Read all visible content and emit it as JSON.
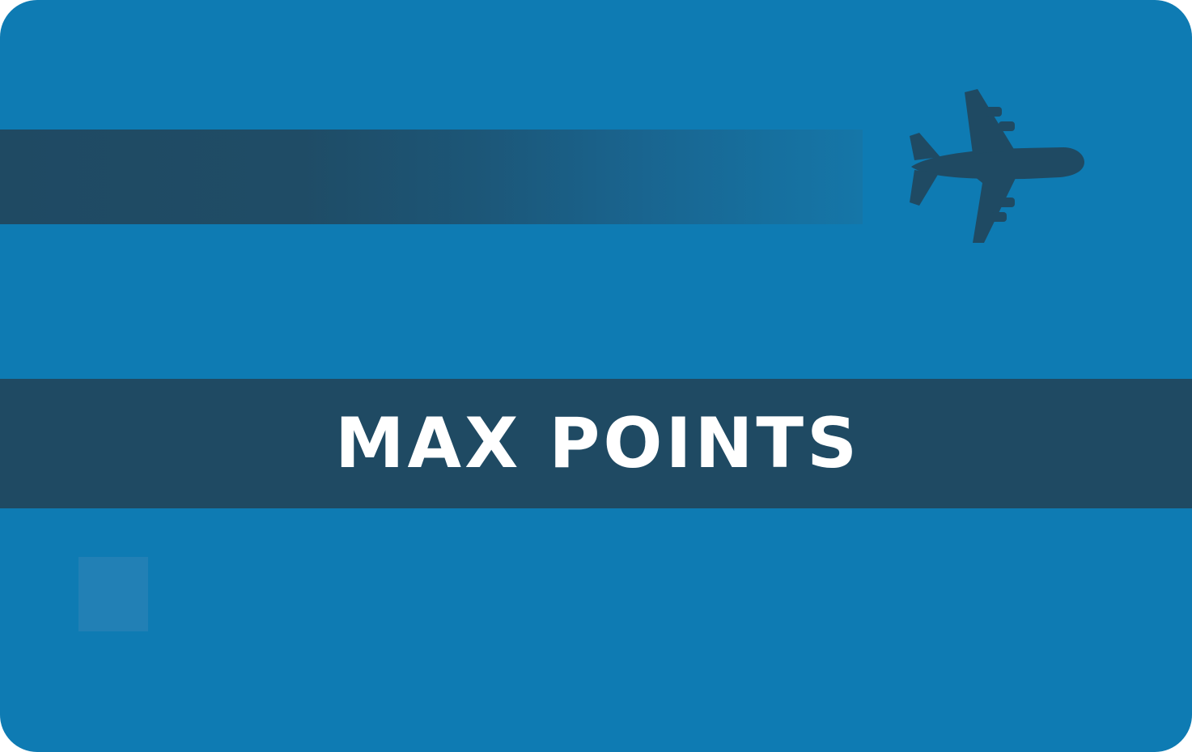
{
  "card": {
    "brand_name": "MAX POINTS",
    "icon": "airplane-icon",
    "colors": {
      "card_background": "#0e7bb3",
      "band": "#1f4a63",
      "plane": "#1f4a63",
      "text": "#ffffff",
      "chip": "#2280b5"
    }
  }
}
